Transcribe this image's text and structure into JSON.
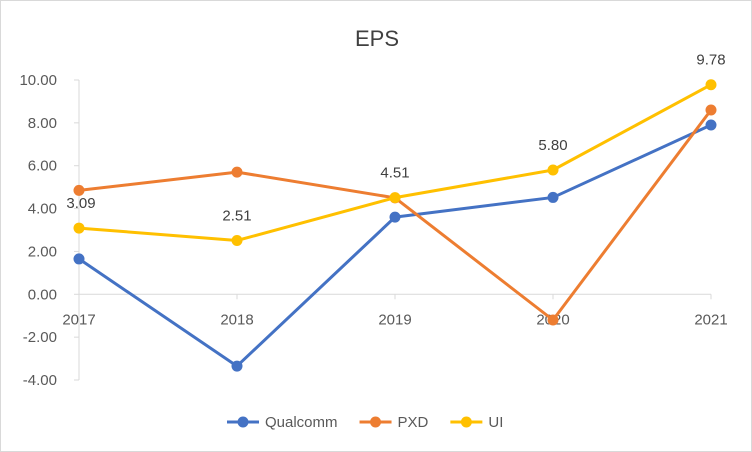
{
  "chart_data": {
    "type": "line",
    "title": "EPS",
    "xlabel": "",
    "ylabel": "",
    "categories": [
      "2017",
      "2018",
      "2019",
      "2020",
      "2021"
    ],
    "ylim": [
      -4,
      10
    ],
    "yticks": [
      "-4.00",
      "-2.00",
      "0.00",
      "2.00",
      "4.00",
      "6.00",
      "8.00",
      "10.00"
    ],
    "grid": false,
    "legend": "bottom",
    "series": [
      {
        "name": "Qualcomm",
        "color": "#4472C4",
        "values": [
          1.65,
          -3.35,
          3.6,
          4.52,
          7.9
        ]
      },
      {
        "name": "PXD",
        "color": "#ED7D31",
        "values": [
          4.85,
          5.7,
          4.5,
          -1.2,
          8.6
        ]
      },
      {
        "name": "UI",
        "color": "#FFC000",
        "values": [
          3.09,
          2.51,
          4.51,
          5.8,
          9.78
        ],
        "data_labels": [
          "3.09",
          "2.51",
          "4.51",
          "5.80",
          "9.78"
        ]
      }
    ]
  }
}
